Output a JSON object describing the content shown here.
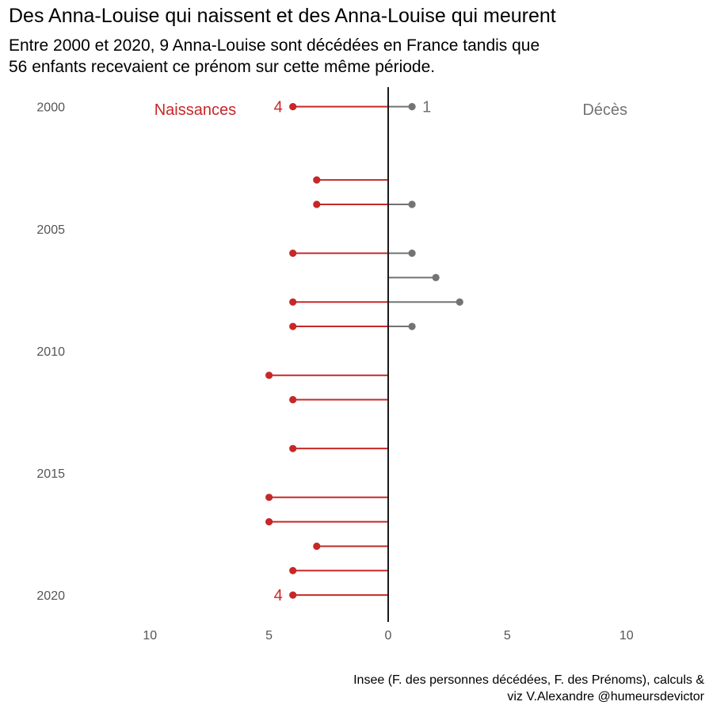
{
  "title": "Des Anna-Louise qui naissent et des Anna-Louise qui meurent",
  "subtitle": [
    "Entre 2000 et 2020, 9 Anna-Louise sont décédées en France tandis que",
    "56 enfants recevaient ce prénom sur cette même période."
  ],
  "caption": [
    "Insee (F. des personnes décédées, F. des Prénoms), calculs &",
    "viz V.Alexandre @humeursdevictor"
  ],
  "colors": {
    "naissances": "#c62828",
    "deces": "#737373",
    "axis_line": "#1a1a1a",
    "tick_text": "#555555"
  },
  "chart_data": {
    "type": "lollipop",
    "orientation": "horizontal-diverging",
    "y_ticks": [
      2000,
      2005,
      2010,
      2015,
      2020
    ],
    "x_ticks": [
      {
        "value": -10,
        "label": "10"
      },
      {
        "value": -5,
        "label": "5"
      },
      {
        "value": 0,
        "label": "0"
      },
      {
        "value": 5,
        "label": "5"
      },
      {
        "value": 10,
        "label": "10"
      }
    ],
    "xlim": [
      -13.3,
      13.3
    ],
    "ylim": [
      1999.2,
      2021.1
    ],
    "grid": false,
    "series": [
      {
        "name": "Naissances",
        "side": "left",
        "points": [
          {
            "year": 2000,
            "value": 4
          },
          {
            "year": 2003,
            "value": 3
          },
          {
            "year": 2004,
            "value": 3
          },
          {
            "year": 2006,
            "value": 4
          },
          {
            "year": 2008,
            "value": 4
          },
          {
            "year": 2009,
            "value": 4
          },
          {
            "year": 2011,
            "value": 5
          },
          {
            "year": 2012,
            "value": 4
          },
          {
            "year": 2014,
            "value": 4
          },
          {
            "year": 2016,
            "value": 5
          },
          {
            "year": 2017,
            "value": 5
          },
          {
            "year": 2018,
            "value": 3
          },
          {
            "year": 2019,
            "value": 4
          },
          {
            "year": 2020,
            "value": 4
          }
        ]
      },
      {
        "name": "Décès",
        "side": "right",
        "points": [
          {
            "year": 2000,
            "value": 1
          },
          {
            "year": 2004,
            "value": 1
          },
          {
            "year": 2006,
            "value": 1
          },
          {
            "year": 2007,
            "value": 2
          },
          {
            "year": 2008,
            "value": 3
          },
          {
            "year": 2009,
            "value": 1
          }
        ]
      }
    ],
    "annotations": [
      {
        "series": "Naissances",
        "year": 2000,
        "text": "4"
      },
      {
        "series": "Naissances",
        "year": 2020,
        "text": "4"
      },
      {
        "series": "Décès",
        "year": 2000,
        "text": "1"
      }
    ]
  }
}
